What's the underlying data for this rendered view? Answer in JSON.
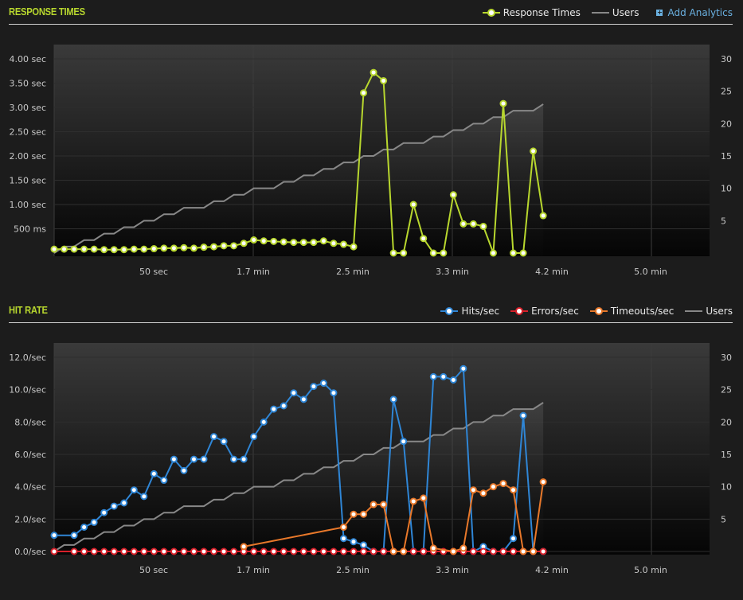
{
  "response_panel": {
    "title": "RESPONSE TIMES",
    "legend": {
      "response_times": "Response Times",
      "users": "Users",
      "add_analytics": "Add Analytics"
    }
  },
  "hit_panel": {
    "title": "HIT RATE",
    "legend": {
      "hits": "Hits/sec",
      "errors": "Errors/sec",
      "timeouts": "Timeouts/sec",
      "users": "Users"
    }
  },
  "colors": {
    "accent": "#b8d72e",
    "hits": "#2f86d6",
    "errors": "#d8202a",
    "timeouts": "#e8782a",
    "users": "#888888"
  },
  "chart_data": [
    {
      "type": "line",
      "title": "RESPONSE TIMES",
      "x_tick_labels": [
        "50 sec",
        "1.7 min",
        "2.5 min",
        "3.3 min",
        "4.2 min",
        "5.0 min"
      ],
      "y_tick_labels": [
        "4.00 sec",
        "3.50 sec",
        "3.00 sec",
        "2.50 sec",
        "2.00 sec",
        "1.50 sec",
        "1.00 sec",
        "500 ms"
      ],
      "y2_tick_labels": [
        "30",
        "25",
        "20",
        "15",
        "10",
        "5"
      ],
      "ylim": [
        0,
        4.0
      ],
      "y2lim": [
        0,
        30
      ],
      "x_range_sec": [
        0,
        330
      ],
      "series": [
        {
          "name": "Response Times",
          "axis": "left",
          "x": [
            0,
            5,
            10,
            15,
            20,
            25,
            30,
            35,
            40,
            45,
            50,
            55,
            60,
            65,
            70,
            75,
            80,
            85,
            90,
            95,
            100,
            105,
            110,
            115,
            120,
            125,
            130,
            135,
            140,
            145,
            150,
            155,
            160,
            165,
            170,
            175,
            180,
            185,
            190,
            195,
            200,
            205,
            210,
            215,
            220,
            225,
            230,
            235,
            240,
            245
          ],
          "values": [
            0.08,
            0.08,
            0.08,
            0.08,
            0.08,
            0.07,
            0.07,
            0.07,
            0.08,
            0.08,
            0.09,
            0.1,
            0.1,
            0.11,
            0.1,
            0.12,
            0.13,
            0.15,
            0.15,
            0.2,
            0.27,
            0.25,
            0.24,
            0.23,
            0.22,
            0.22,
            0.22,
            0.25,
            0.2,
            0.18,
            0.13,
            3.3,
            3.72,
            3.55,
            0.0,
            0.0,
            1.0,
            0.3,
            0.0,
            0.0,
            1.2,
            0.6,
            0.6,
            0.55,
            0.0,
            3.08,
            0.0,
            0.0,
            2.1,
            0.77
          ]
        },
        {
          "name": "Users",
          "axis": "right",
          "x": [
            0,
            5,
            10,
            15,
            20,
            25,
            30,
            35,
            40,
            45,
            50,
            55,
            60,
            65,
            70,
            75,
            80,
            85,
            90,
            95,
            100,
            105,
            110,
            115,
            120,
            125,
            130,
            135,
            140,
            145,
            150,
            155,
            160,
            165,
            170,
            175,
            180,
            185,
            190,
            195,
            200,
            205,
            210,
            215,
            220,
            225,
            230,
            235,
            240,
            245
          ],
          "values": [
            0,
            1,
            1,
            2,
            2,
            3,
            3,
            4,
            4,
            5,
            5,
            6,
            6,
            7,
            7,
            7,
            8,
            8,
            9,
            9,
            10,
            10,
            10,
            11,
            11,
            12,
            12,
            13,
            13,
            14,
            14,
            15,
            15,
            16,
            16,
            17,
            17,
            17,
            18,
            18,
            19,
            19,
            20,
            20,
            21,
            21,
            22,
            22,
            22,
            23
          ]
        }
      ]
    },
    {
      "type": "line",
      "title": "HIT RATE",
      "x_tick_labels": [
        "50 sec",
        "1.7 min",
        "2.5 min",
        "3.3 min",
        "4.2 min",
        "5.0 min"
      ],
      "y_tick_labels": [
        "12.0/sec",
        "10.0/sec",
        "8.0/sec",
        "6.0/sec",
        "4.0/sec",
        "2.0/sec",
        "0.0/sec"
      ],
      "y2_tick_labels": [
        "30",
        "25",
        "20",
        "15",
        "10",
        "5"
      ],
      "ylim": [
        0,
        12.0
      ],
      "y2lim": [
        0,
        30
      ],
      "x_range_sec": [
        0,
        330
      ],
      "series": [
        {
          "name": "Hits/sec",
          "axis": "left",
          "x": [
            0,
            10,
            15,
            20,
            25,
            30,
            35,
            40,
            45,
            50,
            55,
            60,
            65,
            70,
            75,
            80,
            85,
            90,
            95,
            100,
            105,
            110,
            115,
            120,
            125,
            130,
            135,
            140,
            145,
            150,
            155,
            160,
            165,
            170,
            175,
            180,
            185,
            190,
            195,
            200,
            205,
            210,
            215,
            220,
            225,
            230,
            235,
            240,
            245
          ],
          "values": [
            1.0,
            1.0,
            1.5,
            1.8,
            2.4,
            2.8,
            3.0,
            3.8,
            3.4,
            4.8,
            4.4,
            5.7,
            5.0,
            5.7,
            5.7,
            7.1,
            6.8,
            5.7,
            5.7,
            7.1,
            8.0,
            8.8,
            9.0,
            9.8,
            9.4,
            10.2,
            10.4,
            9.8,
            0.8,
            0.6,
            0.4,
            0.0,
            0.0,
            9.4,
            6.8,
            0.0,
            0.0,
            10.8,
            10.8,
            10.6,
            11.3,
            0.0,
            0.3,
            0.0,
            0.0,
            0.8,
            8.4,
            0.0,
            0.0
          ]
        },
        {
          "name": "Errors/sec",
          "axis": "left",
          "x": [
            0,
            10,
            15,
            20,
            25,
            30,
            35,
            40,
            45,
            50,
            55,
            60,
            65,
            70,
            75,
            80,
            85,
            90,
            95,
            100,
            105,
            110,
            115,
            120,
            125,
            130,
            135,
            140,
            145,
            150,
            155,
            160,
            165,
            170,
            175,
            180,
            185,
            190,
            195,
            200,
            205,
            210,
            215,
            220,
            225,
            230,
            235,
            240,
            245
          ],
          "values": [
            0,
            0,
            0,
            0,
            0,
            0,
            0,
            0,
            0,
            0,
            0,
            0,
            0,
            0,
            0,
            0,
            0,
            0,
            0,
            0,
            0,
            0,
            0,
            0,
            0,
            0,
            0,
            0,
            0,
            0,
            0,
            0,
            0,
            0,
            0,
            0,
            0,
            0,
            0,
            0,
            0,
            0,
            0,
            0,
            0,
            0,
            0,
            0,
            0
          ]
        },
        {
          "name": "Timeouts/sec",
          "axis": "left",
          "x": [
            95,
            145,
            150,
            155,
            160,
            165,
            170,
            175,
            180,
            185,
            190,
            200,
            205,
            210,
            215,
            220,
            225,
            230,
            235,
            240,
            245
          ],
          "values": [
            0.3,
            1.5,
            2.3,
            2.3,
            2.9,
            2.9,
            0.0,
            0.0,
            3.1,
            3.3,
            0.2,
            0.0,
            0.2,
            3.8,
            3.6,
            4.0,
            4.2,
            3.8,
            0.0,
            0.0,
            4.3
          ]
        },
        {
          "name": "Users",
          "axis": "right",
          "x": [
            0,
            5,
            10,
            15,
            20,
            25,
            30,
            35,
            40,
            45,
            50,
            55,
            60,
            65,
            70,
            75,
            80,
            85,
            90,
            95,
            100,
            105,
            110,
            115,
            120,
            125,
            130,
            135,
            140,
            145,
            150,
            155,
            160,
            165,
            170,
            175,
            180,
            185,
            190,
            195,
            200,
            205,
            210,
            215,
            220,
            225,
            230,
            235,
            240,
            245
          ],
          "values": [
            0,
            1,
            1,
            2,
            2,
            3,
            3,
            4,
            4,
            5,
            5,
            6,
            6,
            7,
            7,
            7,
            8,
            8,
            9,
            9,
            10,
            10,
            10,
            11,
            11,
            12,
            12,
            13,
            13,
            14,
            14,
            15,
            15,
            16,
            16,
            17,
            17,
            17,
            18,
            18,
            19,
            19,
            20,
            20,
            21,
            21,
            22,
            22,
            22,
            23
          ]
        }
      ]
    }
  ]
}
